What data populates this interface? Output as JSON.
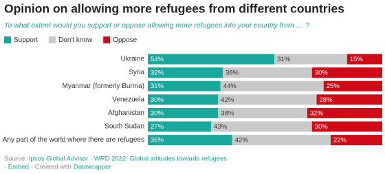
{
  "chart_data": {
    "type": "stacked-bar",
    "title": "Opinion on allowing more refugees from different countries",
    "subtitle": "To what extent would you support or oppose allowing more refugees into your country from … ?",
    "categories": [
      "Ukraine",
      "Syria",
      "Myanmar (formerly Burma)",
      "Venezuela",
      "Afghanistan",
      "South Sudan",
      "Any part of the world where there are refugees"
    ],
    "series": [
      {
        "name": "Support",
        "color": "#1ba89c",
        "values": [
          54,
          32,
          31,
          30,
          30,
          27,
          36
        ],
        "value_labels": [
          "54%",
          "32%",
          "31%",
          "30%",
          "30%",
          "27%",
          "36%"
        ]
      },
      {
        "name": "Don't know",
        "color": "#c9c9c9",
        "values": [
          31,
          38,
          44,
          42,
          38,
          43,
          42
        ],
        "value_labels": [
          "31%",
          "38%",
          "44%",
          "42%",
          "38%",
          "43%",
          "42%"
        ]
      },
      {
        "name": "Oppose",
        "color": "#d10a17",
        "values": [
          15,
          30,
          25,
          28,
          32,
          30,
          22
        ],
        "value_labels": [
          "15%",
          "30%",
          "25%",
          "28%",
          "32%",
          "30%",
          "22%"
        ]
      }
    ],
    "footer": {
      "source_label": "Source:",
      "source": "Ipsos Global Advisor · WRD 2022: Global attitudes towards refugees",
      "embed": "· Embed",
      "credit": "· Created with",
      "credit_link": "Datawrapper"
    }
  }
}
